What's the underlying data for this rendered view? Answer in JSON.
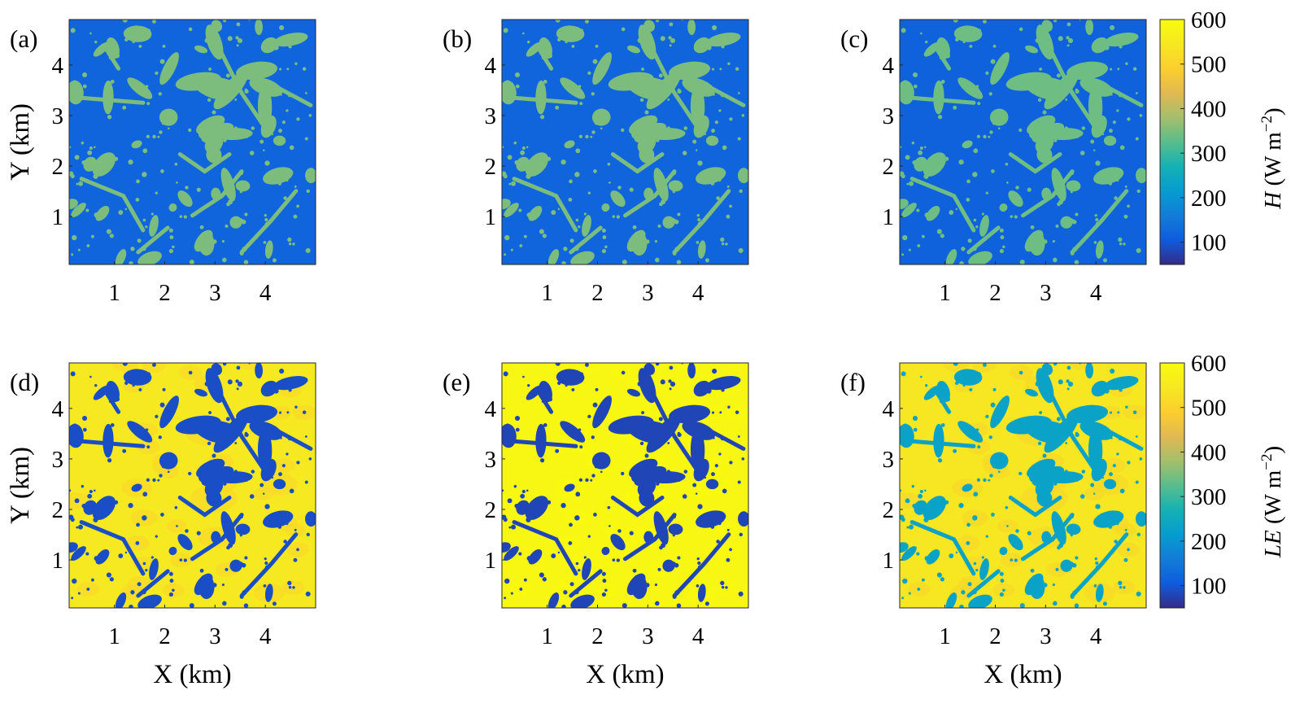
{
  "chart_data": {
    "type": "heatmap",
    "layout": "2x3 panel grid",
    "x_unit_label": "X (km)",
    "y_unit_label": "Y (km)",
    "xlim": [
      0.1,
      5.0
    ],
    "ylim": [
      0.05,
      4.9
    ],
    "xticks": [
      1,
      2,
      3,
      4
    ],
    "yticks": [
      1,
      2,
      3,
      4
    ],
    "colormap": "parula",
    "panels": [
      {
        "label": "(a)",
        "variable": "H",
        "background_value": 120,
        "feature_value": 350,
        "feature_kind": "patches"
      },
      {
        "label": "(b)",
        "variable": "H",
        "background_value": 120,
        "feature_value": 350,
        "feature_kind": "patches"
      },
      {
        "label": "(c)",
        "variable": "H",
        "background_value": 115,
        "feature_value": 340,
        "feature_kind": "patches"
      },
      {
        "label": "(d)",
        "variable": "LE",
        "background_value": 545,
        "feature_value": 90,
        "feature_kind": "patches"
      },
      {
        "label": "(e)",
        "variable": "LE",
        "background_value": 585,
        "feature_value": 80,
        "feature_kind": "patches"
      },
      {
        "label": "(f)",
        "variable": "LE",
        "background_value": 540,
        "feature_value": 230,
        "feature_kind": "patches"
      }
    ],
    "colorbars": [
      {
        "variable": "H",
        "label_symbol": "H",
        "label_units": "(W m",
        "label_exp": "−2",
        "label_close": ")",
        "range": [
          50,
          600
        ],
        "ticks": [
          100,
          200,
          300,
          400,
          500,
          600
        ]
      },
      {
        "variable": "LE",
        "label_symbol": "LE",
        "label_units": "(W m",
        "label_exp": "−2",
        "label_close": ")",
        "range": [
          50,
          600
        ],
        "ticks": [
          100,
          200,
          300,
          400,
          500,
          600
        ]
      }
    ]
  }
}
